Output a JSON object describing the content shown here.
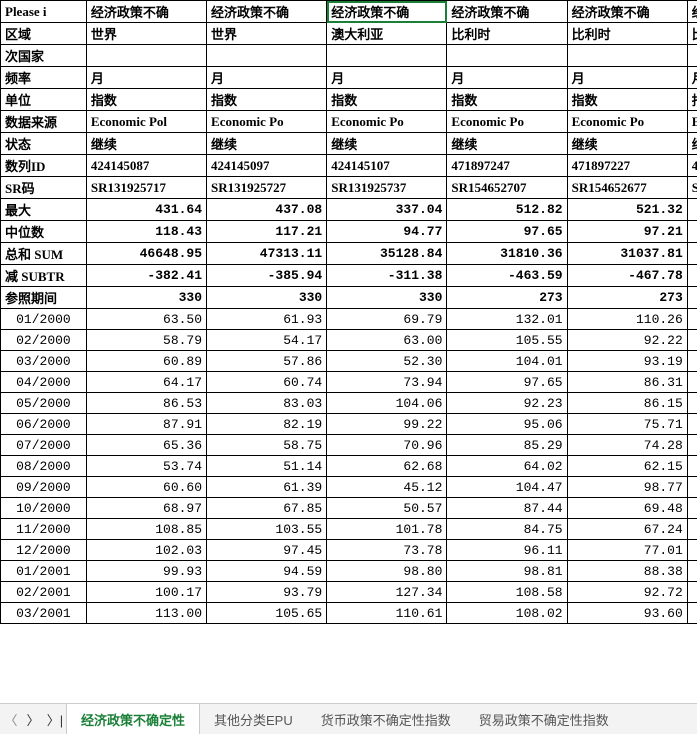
{
  "header_row": [
    "Please i",
    "经济政策不确",
    "经济政策不确",
    "经济政策不确",
    "经济政策不确",
    "经济政策不确",
    "经"
  ],
  "selected_cell": {
    "row": 0,
    "col": 3
  },
  "meta_rows": [
    {
      "label": "区域",
      "cells": [
        "世界",
        "世界",
        "澳大利亚",
        "比利时",
        "比利时",
        "比"
      ],
      "bold": true
    },
    {
      "label": "次国家",
      "cells": [
        "",
        "",
        "",
        "",
        "",
        ""
      ],
      "bold": true
    },
    {
      "label": "频率",
      "cells": [
        "月",
        "月",
        "月",
        "月",
        "月",
        "月"
      ],
      "bold": true
    },
    {
      "label": "单位",
      "cells": [
        "指数",
        "指数",
        "指数",
        "指数",
        "指数",
        "指"
      ],
      "bold": true
    },
    {
      "label": "数据来源",
      "cells": [
        "Economic Pol",
        "Economic Po",
        "Economic Po",
        "Economic Po",
        "Economic Po",
        "Ec"
      ],
      "bold": true
    },
    {
      "label": "状态",
      "cells": [
        "继续",
        "继续",
        "继续",
        "继续",
        "继续",
        "继"
      ],
      "bold": true
    },
    {
      "label": "数列ID",
      "cells": [
        "424145087",
        "424145097",
        "424145107",
        "471897247",
        "471897227",
        "4"
      ],
      "bold": true,
      "text": true
    },
    {
      "label": "SR码",
      "cells": [
        "SR131925717",
        "SR131925727",
        "SR131925737",
        "SR154652707",
        "SR154652677",
        "SR"
      ],
      "bold": true,
      "text": true
    }
  ],
  "stat_rows": [
    {
      "label": "最大",
      "cells": [
        "431.64",
        "437.08",
        "337.04",
        "512.82",
        "521.32",
        ""
      ]
    },
    {
      "label": "中位数",
      "cells": [
        "118.43",
        "117.21",
        "94.77",
        "97.65",
        "97.21",
        ""
      ]
    },
    {
      "label": "总和 SUM",
      "cells": [
        "46648.95",
        "47313.11",
        "35128.84",
        "31810.36",
        "31037.81",
        ""
      ]
    },
    {
      "label": "减 SUBTR",
      "cells": [
        "-382.41",
        "-385.94",
        "-311.38",
        "-463.59",
        "-467.78",
        ""
      ]
    },
    {
      "label": "参照期间",
      "cells": [
        "330",
        "330",
        "330",
        "273",
        "273",
        ""
      ]
    }
  ],
  "data_rows": [
    {
      "t": "01/2000",
      "v": [
        "63.50",
        "61.93",
        "69.79",
        "132.01",
        "110.26",
        ""
      ]
    },
    {
      "t": "02/2000",
      "v": [
        "58.79",
        "54.17",
        "63.00",
        "105.55",
        "92.22",
        ""
      ]
    },
    {
      "t": "03/2000",
      "v": [
        "60.89",
        "57.86",
        "52.30",
        "104.01",
        "93.19",
        ""
      ]
    },
    {
      "t": "04/2000",
      "v": [
        "64.17",
        "60.74",
        "73.94",
        "97.65",
        "86.31",
        ""
      ]
    },
    {
      "t": "05/2000",
      "v": [
        "86.53",
        "83.03",
        "104.06",
        "92.23",
        "86.15",
        ""
      ]
    },
    {
      "t": "06/2000",
      "v": [
        "87.91",
        "82.19",
        "99.22",
        "95.06",
        "75.71",
        ""
      ]
    },
    {
      "t": "07/2000",
      "v": [
        "65.36",
        "58.75",
        "70.96",
        "85.29",
        "74.28",
        ""
      ]
    },
    {
      "t": "08/2000",
      "v": [
        "53.74",
        "51.14",
        "62.68",
        "64.02",
        "62.15",
        ""
      ]
    },
    {
      "t": "09/2000",
      "v": [
        "60.60",
        "61.39",
        "45.12",
        "104.47",
        "98.77",
        ""
      ]
    },
    {
      "t": "10/2000",
      "v": [
        "68.97",
        "67.85",
        "50.57",
        "87.44",
        "69.48",
        ""
      ]
    },
    {
      "t": "11/2000",
      "v": [
        "108.85",
        "103.55",
        "101.78",
        "84.75",
        "67.24",
        ""
      ]
    },
    {
      "t": "12/2000",
      "v": [
        "102.03",
        "97.45",
        "73.78",
        "96.11",
        "77.01",
        ""
      ]
    },
    {
      "t": "01/2001",
      "v": [
        "99.93",
        "94.59",
        "98.80",
        "98.81",
        "88.38",
        ""
      ]
    },
    {
      "t": "02/2001",
      "v": [
        "100.17",
        "93.79",
        "127.34",
        "108.58",
        "92.72",
        ""
      ]
    },
    {
      "t": "03/2001",
      "v": [
        "113.00",
        "105.65",
        "110.61",
        "108.02",
        "93.60",
        ""
      ]
    }
  ],
  "tabs": {
    "nav": [
      "〈",
      "〉",
      "〉|"
    ],
    "items": [
      "经济政策不确定性",
      "其他分类EPU",
      "货币政策不确定性指数",
      "贸易政策不确定性指数"
    ],
    "active": 0
  }
}
